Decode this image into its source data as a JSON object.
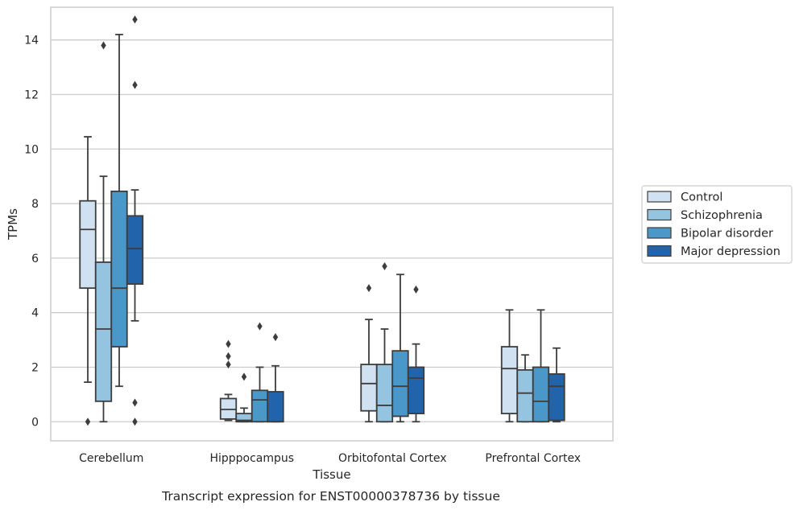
{
  "chart_data": {
    "type": "box",
    "xlabel": "Tissue",
    "ylabel": "TPMs",
    "caption": "Transcript expression for ENST00000378736 by tissue",
    "ylim": [
      -0.7,
      15.2
    ],
    "yticks": [
      0,
      2,
      4,
      6,
      8,
      10,
      12,
      14
    ],
    "grid": "horizontal",
    "legend_position": "right",
    "categories": [
      "Cerebellum",
      "Hipppocampus",
      "Orbitofontal Cortex",
      "Prefrontal Cortex"
    ],
    "series": [
      {
        "name": "Control",
        "color": "#d0e1f2",
        "boxes": [
          {
            "whislo": 1.45,
            "q1": 4.9,
            "med": 7.05,
            "q3": 8.1,
            "whishi": 10.45,
            "fliers": [
              0.0
            ]
          },
          {
            "whislo": 0.05,
            "q1": 0.1,
            "med": 0.45,
            "q3": 0.85,
            "whishi": 1.0,
            "fliers": [
              2.1,
              2.4,
              2.85
            ]
          },
          {
            "whislo": 0.0,
            "q1": 0.4,
            "med": 1.4,
            "q3": 2.1,
            "whishi": 3.75,
            "fliers": [
              4.9
            ]
          },
          {
            "whislo": 0.0,
            "q1": 0.3,
            "med": 1.95,
            "q3": 2.75,
            "whishi": 4.1,
            "fliers": []
          }
        ]
      },
      {
        "name": "Schizophrenia",
        "color": "#94c4df",
        "boxes": [
          {
            "whislo": 0.0,
            "q1": 0.75,
            "med": 3.4,
            "q3": 5.85,
            "whishi": 9.0,
            "fliers": [
              13.8
            ]
          },
          {
            "whislo": 0.0,
            "q1": 0.0,
            "med": 0.05,
            "q3": 0.3,
            "whishi": 0.5,
            "fliers": [
              1.65
            ]
          },
          {
            "whislo": 0.0,
            "q1": 0.0,
            "med": 0.6,
            "q3": 2.1,
            "whishi": 3.4,
            "fliers": [
              5.7
            ]
          },
          {
            "whislo": 0.0,
            "q1": 0.0,
            "med": 1.05,
            "q3": 1.9,
            "whishi": 2.45,
            "fliers": []
          }
        ]
      },
      {
        "name": "Bipolar disorder",
        "color": "#4a98c9",
        "boxes": [
          {
            "whislo": 1.3,
            "q1": 2.75,
            "med": 4.9,
            "q3": 8.45,
            "whishi": 14.2,
            "fliers": []
          },
          {
            "whislo": 0.0,
            "q1": 0.0,
            "med": 0.8,
            "q3": 1.15,
            "whishi": 2.0,
            "fliers": [
              3.5
            ]
          },
          {
            "whislo": 0.0,
            "q1": 0.2,
            "med": 1.3,
            "q3": 2.6,
            "whishi": 5.4,
            "fliers": []
          },
          {
            "whislo": 0.0,
            "q1": 0.0,
            "med": 0.75,
            "q3": 2.0,
            "whishi": 4.1,
            "fliers": []
          }
        ]
      },
      {
        "name": "Major depression",
        "color": "#2164ab",
        "boxes": [
          {
            "whislo": 3.7,
            "q1": 5.05,
            "med": 6.35,
            "q3": 7.55,
            "whishi": 8.5,
            "fliers": [
              0.0,
              0.7,
              12.35,
              14.75
            ]
          },
          {
            "whislo": 0.0,
            "q1": 0.0,
            "med": 0.0,
            "q3": 1.1,
            "whishi": 2.05,
            "fliers": [
              3.1
            ]
          },
          {
            "whislo": 0.0,
            "q1": 0.3,
            "med": 1.6,
            "q3": 2.0,
            "whishi": 2.85,
            "fliers": [
              4.85
            ]
          },
          {
            "whislo": 0.0,
            "q1": 0.05,
            "med": 1.3,
            "q3": 1.75,
            "whishi": 2.7,
            "fliers": []
          }
        ]
      }
    ]
  }
}
